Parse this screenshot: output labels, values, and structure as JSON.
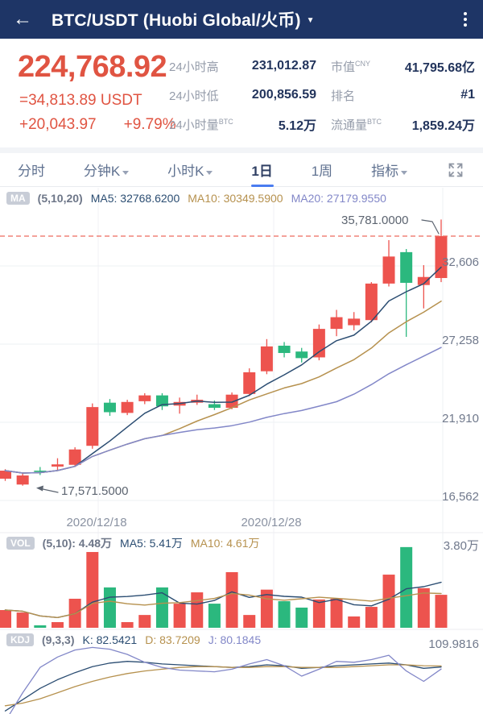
{
  "header": {
    "back_icon": "←",
    "title": "BTC/USDT (Huobi Global/火币)",
    "caret": "▼"
  },
  "quote": {
    "price": "224,768.92",
    "usdt_equiv": "=34,813.89 USDT",
    "change_abs": "+20,043.97",
    "change_pct": "+9.79%",
    "stats": [
      {
        "label": "24小时高",
        "sup": "",
        "value": "231,012.87"
      },
      {
        "label": "市值",
        "sup": "CNY",
        "value": "41,795.68亿"
      },
      {
        "label": "24小时低",
        "sup": "",
        "value": "200,856.59"
      },
      {
        "label": "排名",
        "sup": "",
        "value": "#1"
      },
      {
        "label": "24小时量",
        "sup": "BTC",
        "value": "5.12万"
      },
      {
        "label": "流通量",
        "sup": "BTC",
        "value": "1,859.24万"
      }
    ]
  },
  "tabs": [
    {
      "label": "分时"
    },
    {
      "label": "分钟K"
    },
    {
      "label": "小时K"
    },
    {
      "label": "1日"
    },
    {
      "label": "1周"
    },
    {
      "label": "指标"
    }
  ],
  "chart_data": {
    "type": "candlestick",
    "period": "1日",
    "ma_legend": {
      "badge": "MA",
      "params": "(5,10,20)",
      "ma5": "MA5: 32768.6200",
      "ma10": "MA10: 30349.5900",
      "ma20": "MA20: 27179.9550"
    },
    "high_label": "35,781.0000",
    "low_label": "17,571.5000",
    "current_price": 34645,
    "price_axis": {
      "labels": [
        "32,606",
        "27,258",
        "21,910",
        "16,562"
      ],
      "values": [
        32606,
        27258,
        21910,
        16562
      ]
    },
    "x_dates": [
      "2020/12/18",
      "2020/12/28"
    ],
    "x_gridlines": [
      122,
      340
    ],
    "candles_ohlc": [
      [
        18050,
        18700,
        17900,
        18600
      ],
      [
        17650,
        18450,
        17571.5,
        18270
      ],
      [
        18600,
        18850,
        18300,
        18520
      ],
      [
        18880,
        19450,
        18650,
        19030
      ],
      [
        19000,
        20200,
        18850,
        20050
      ],
      [
        20300,
        23200,
        20100,
        22950
      ],
      [
        23250,
        23500,
        22350,
        22600
      ],
      [
        22550,
        23450,
        22400,
        23300
      ],
      [
        23350,
        23900,
        23150,
        23750
      ],
      [
        23750,
        23900,
        22750,
        23000
      ],
      [
        23050,
        23600,
        22500,
        23300
      ],
      [
        23250,
        23800,
        23100,
        23450
      ],
      [
        23150,
        23400,
        22750,
        22900
      ],
      [
        22900,
        23950,
        22800,
        23800
      ],
      [
        23850,
        25600,
        23700,
        25330
      ],
      [
        25400,
        27600,
        25200,
        27100
      ],
      [
        27150,
        27400,
        26350,
        26650
      ],
      [
        26750,
        27000,
        26000,
        26300
      ],
      [
        26350,
        28600,
        26150,
        28300
      ],
      [
        28300,
        29600,
        27800,
        29100
      ],
      [
        28550,
        29450,
        28200,
        29000
      ],
      [
        28900,
        31500,
        28750,
        31400
      ],
      [
        31400,
        34370,
        31200,
        33250
      ],
      [
        33550,
        33764,
        27755,
        31450
      ],
      [
        31300,
        32660,
        29700,
        31850
      ],
      [
        31780,
        35781,
        31500,
        34645
      ]
    ],
    "volume": {
      "badge": "VOL",
      "params": "(5,10): 4.48万",
      "ma5": "MA5: 5.41万",
      "ma10": "MA10: 4.61万",
      "max_label": "3.80万",
      "axis_max": 3.8,
      "values": [
        0.72,
        0.62,
        0.1,
        0.23,
        1.18,
        3.08,
        1.64,
        0.23,
        0.52,
        1.64,
        0.98,
        1.44,
        0.98,
        2.26,
        0.52,
        1.55,
        1.08,
        0.82,
        1.15,
        1.18,
        0.46,
        0.85,
        2.16,
        3.28,
        1.61,
        1.34
      ]
    },
    "kdj": {
      "badge": "KDJ",
      "params": "(9,3,3)",
      "k_label": "K: 82.5421",
      "d_label": "D: 83.7209",
      "j_label": "J: 80.1845",
      "max_label": "109.9816",
      "k": [
        32,
        45,
        58,
        68,
        76,
        83,
        87,
        89,
        88,
        86,
        85,
        84,
        83,
        82,
        83,
        85,
        84,
        81,
        82,
        84,
        85,
        86,
        87,
        85,
        81,
        82.5421
      ],
      "d": [
        38,
        41,
        46,
        53,
        60,
        66,
        71,
        75,
        78,
        80,
        82,
        83,
        83,
        82,
        82,
        83,
        83,
        82,
        82,
        82,
        83,
        84,
        85,
        85,
        84,
        83.7209
      ],
      "j": [
        20,
        53,
        82,
        94,
        102,
        105,
        103,
        97,
        88,
        82,
        79,
        78,
        77,
        80,
        86,
        91,
        84,
        72,
        80,
        89,
        88,
        91,
        96,
        78,
        66,
        80.1845
      ]
    },
    "colors": {
      "up": "#ed534e",
      "down": "#2bb87e",
      "ma5": "#2b4d72",
      "ma10": "#b6914e",
      "ma20": "#8287c8",
      "dashed": "#ee6a5e",
      "grid": "#eef0f3",
      "pointer": "#5c6470"
    }
  }
}
